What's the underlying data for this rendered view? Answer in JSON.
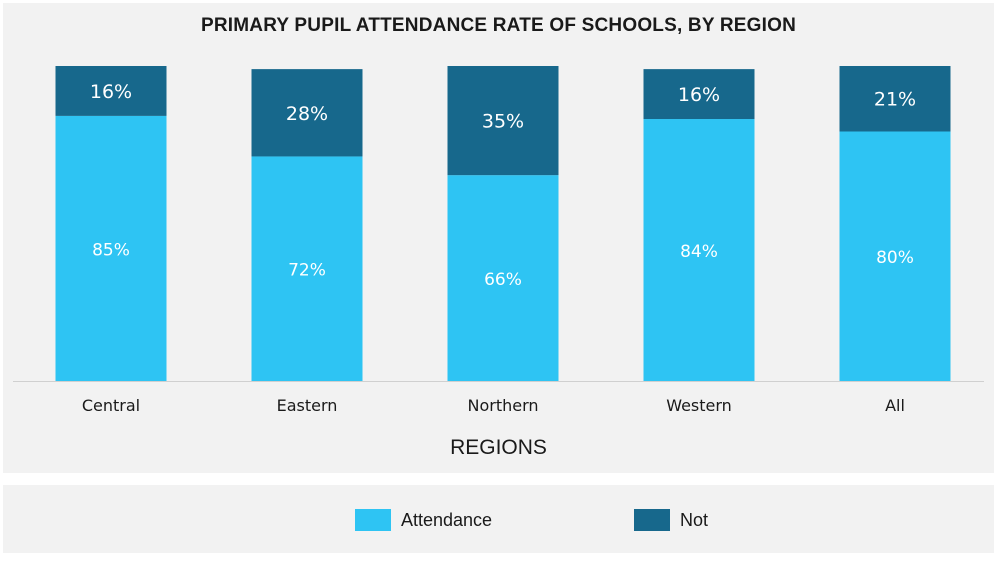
{
  "chart_data": {
    "type": "bar",
    "stacked": true,
    "title": "PRIMARY PUPIL ATTENDANCE RATE OF SCHOOLS, BY REGION",
    "xlabel": "REGIONS",
    "ylabel": "",
    "ylim": [
      0,
      100
    ],
    "categories": [
      "Central",
      "Eastern",
      "Northern",
      "Western",
      "All"
    ],
    "series": [
      {
        "name": "Attendance",
        "color": "#2ec4f3",
        "values": [
          85,
          72,
          66,
          84,
          80
        ],
        "labels": [
          "85%",
          "72%",
          "66%",
          "84%",
          "80%"
        ]
      },
      {
        "name": "Not",
        "color": "#17688c",
        "values": [
          16,
          28,
          35,
          16,
          21
        ],
        "labels": [
          "16%",
          "28%",
          "35%",
          "16%",
          "21%"
        ]
      }
    ],
    "legend_position": "bottom"
  }
}
